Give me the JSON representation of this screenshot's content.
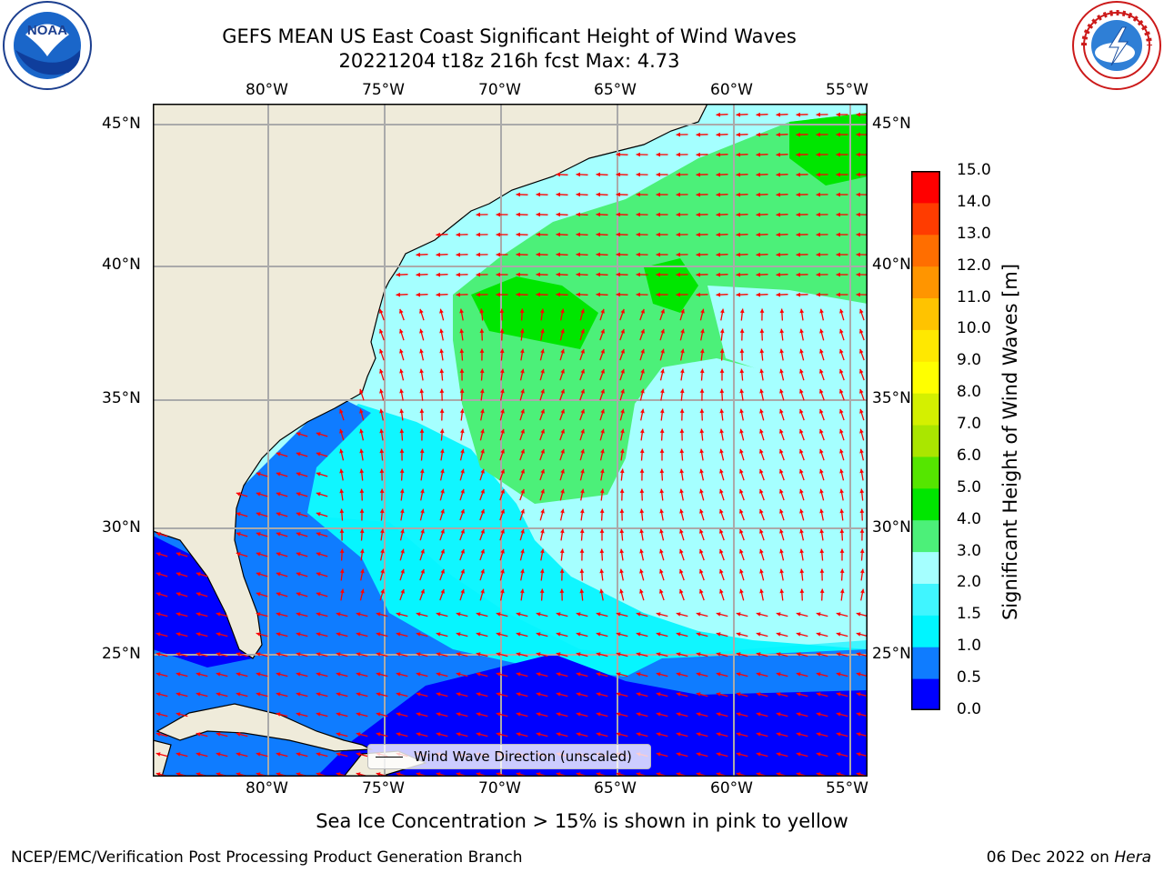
{
  "title": {
    "line1": "GEFS MEAN US East Coast Significant Height of Wind Waves",
    "line2": "20221204 t18z 216h fcst   Max: 4.73"
  },
  "logos": {
    "left": "noaa-logo",
    "right": "nws-logo"
  },
  "axes": {
    "lon_labels": [
      "80°W",
      "75°W",
      "70°W",
      "65°W",
      "60°W",
      "55°W"
    ],
    "lat_labels": [
      "45°N",
      "40°N",
      "35°N",
      "30°N",
      "25°N"
    ],
    "lon_range": [
      -85,
      -54.5
    ],
    "lat_range": [
      20.5,
      46
    ]
  },
  "legend": {
    "label": "Wind Wave Direction (unscaled)"
  },
  "colorbar": {
    "title": "Significant Height of Wind Waves [m]",
    "ticks": [
      "0.0",
      "0.5",
      "1.0",
      "1.5",
      "2.0",
      "3.0",
      "4.0",
      "5.0",
      "6.0",
      "7.0",
      "8.0",
      "9.0",
      "10.0",
      "11.0",
      "12.0",
      "13.0",
      "14.0",
      "15.0"
    ],
    "colors": [
      "#0000ff",
      "#0f7cff",
      "#00f5ff",
      "#40f5ff",
      "#a5ffff",
      "#4cf079",
      "#00e600",
      "#55e600",
      "#aae600",
      "#d4f000",
      "#ffff00",
      "#ffe800",
      "#ffc300",
      "#ff9500",
      "#ff6e00",
      "#ff3c00",
      "#ff0000"
    ]
  },
  "colors": {
    "land": "#efebda",
    "coast": "#000000",
    "grid": "#aaaaaa",
    "arrow": "#ff0000"
  },
  "footnote": "Sea Ice Concentration > 15% is shown in pink to yellow",
  "footer": {
    "branch": "NCEP/EMC/Verification Post Processing Product Generation Branch",
    "date": "06 Dec 2022 on",
    "machine": "Hera"
  }
}
